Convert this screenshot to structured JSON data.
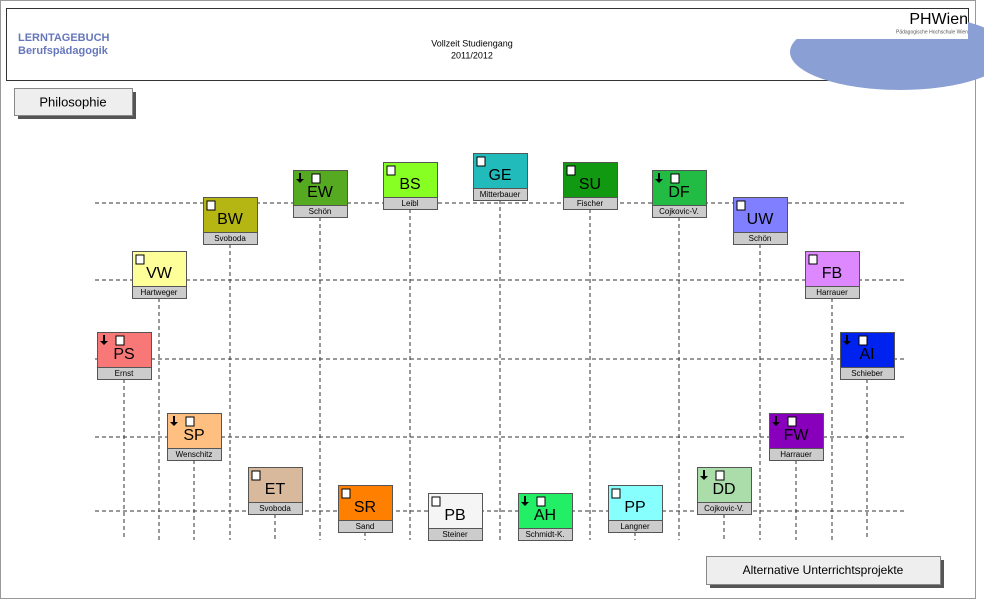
{
  "header": {
    "title": "LERNTAGEBUCH",
    "subtitle": "Berufspädagogik",
    "program": "Vollzeit Studiengang",
    "year": "2011/2012",
    "logo": "PHWien",
    "logo_caption": "Pädagogische Hochschule Wien"
  },
  "buttons": [
    "Philosophie",
    "Alternative Unterrichtsprojekte"
  ],
  "nodes": [
    {
      "code": "PS",
      "name": "Ernst",
      "color": "#f87878"
    },
    {
      "code": "VW",
      "name": "Hartweger",
      "color": "#ffff99"
    },
    {
      "code": "SP",
      "name": "Wenschitz",
      "color": "#ffbf80"
    },
    {
      "code": "BW",
      "name": "Svoboda",
      "color": "#b5b514"
    },
    {
      "code": "ET",
      "name": "Svoboda",
      "color": "#d9b99b"
    },
    {
      "code": "EW",
      "name": "Schön",
      "color": "#55aa22"
    },
    {
      "code": "SR",
      "name": "Sand",
      "color": "#ff7f00"
    },
    {
      "code": "BS",
      "name": "Leibl",
      "color": "#88ff22"
    },
    {
      "code": "PB",
      "name": "Steiner",
      "color": "#f5f5f5"
    },
    {
      "code": "GE",
      "name": "Mitterbauer",
      "color": "#22bbbb"
    },
    {
      "code": "AH",
      "name": "Schmidt-K.",
      "color": "#22ee66"
    },
    {
      "code": "SU",
      "name": "Fischer",
      "color": "#119911"
    },
    {
      "code": "PP",
      "name": "Langner",
      "color": "#88ffff"
    },
    {
      "code": "DF",
      "name": "Cojkovic-V.",
      "color": "#22bb44"
    },
    {
      "code": "DD",
      "name": "Cojkovic-V.",
      "color": "#aaddaa"
    },
    {
      "code": "UW",
      "name": "Schön",
      "color": "#7f7fff"
    },
    {
      "code": "FW",
      "name": "Harrauer",
      "color": "#8800bb"
    },
    {
      "code": "FB",
      "name": "Harrauer",
      "color": "#dd88ff"
    },
    {
      "code": "AI",
      "name": "Schieber",
      "color": "#0022ee"
    }
  ]
}
